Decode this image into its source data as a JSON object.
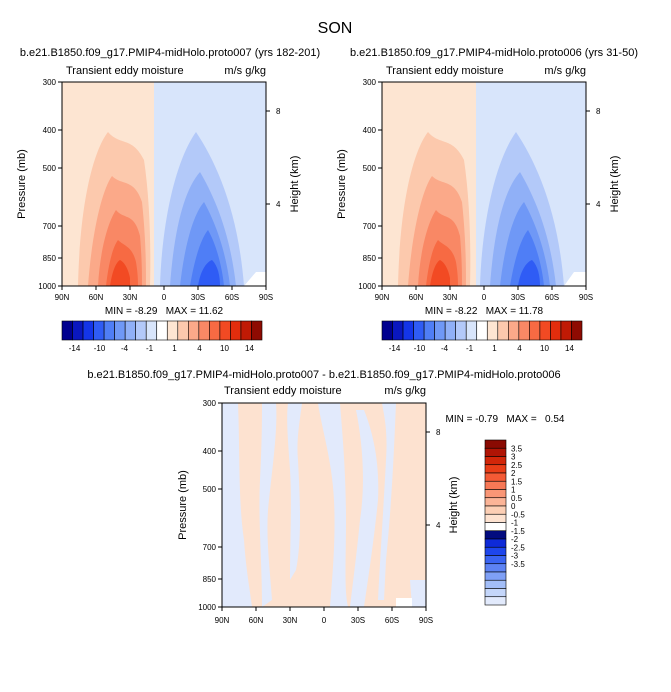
{
  "page_title": "SON",
  "colors": {
    "neg": [
      "#00008f",
      "#0a17c0",
      "#1435e8",
      "#2f5cf5",
      "#4f7ef6",
      "#6f98f6",
      "#90b0f7",
      "#b3c9f9",
      "#d8e5fb"
    ],
    "zero": "#ffffff",
    "pos": [
      "#fde5d2",
      "#fcc9ad",
      "#fba989",
      "#f98865",
      "#f76a43",
      "#f24a23",
      "#e22d0d",
      "#c01a05",
      "#8e0b02"
    ],
    "bottom_neg": [
      "#030b7f",
      "#0e2ad8",
      "#1e46ec",
      "#3a64f2",
      "#5d83f4",
      "#7fa0f6",
      "#a3bef8",
      "#c4d6fa",
      "#e2eafc"
    ],
    "bottom_pos": [
      "#fde2d0",
      "#fccfb5",
      "#fbb497",
      "#f99676",
      "#f77856",
      "#f45a35",
      "#e93d17",
      "#d22609",
      "#b01405",
      "#8a0a02"
    ]
  },
  "chart_data": [
    {
      "type": "heatmap",
      "title": "b.e21.B1850.f09_g17.PMIP4-midHolo.proto007 (yrs 182-201)",
      "left_string": "Transient eddy moisture",
      "right_string": "m/s g/kg",
      "xlabel": "",
      "ylabel": "Pressure (mb)",
      "y2label": "Height (km)",
      "x_ticks": [
        "90N",
        "60N",
        "30N",
        "0",
        "30S",
        "60S",
        "90S"
      ],
      "x_values": [
        90,
        60,
        30,
        0,
        -30,
        -60,
        -90
      ],
      "y_ticks": [
        "300",
        "400",
        "500",
        "700",
        "850",
        "1000"
      ],
      "y_values": [
        300,
        400,
        500,
        700,
        850,
        1000
      ],
      "y2_ticks": [
        "8",
        "4"
      ],
      "stats_text": "MIN = -8.29   MAX = 11.62",
      "min": -8.29,
      "max": 11.62,
      "label_bar": {
        "labels": [
          "-14",
          "-10",
          "-4",
          "-1",
          "1",
          "4",
          "10",
          "14"
        ],
        "levels": [
          -14,
          -12,
          -10,
          -7,
          -4,
          -2,
          -1,
          -0.5,
          0.5,
          1,
          2,
          4,
          7,
          10,
          12,
          14
        ]
      }
    },
    {
      "type": "heatmap",
      "title": "b.e21.B1850.f09_g17.PMIP4-midHolo.proto006 (yrs 31-50)",
      "left_string": "Transient eddy moisture",
      "right_string": "m/s g/kg",
      "ylabel": "Pressure (mb)",
      "y2label": "Height (km)",
      "x_ticks": [
        "90N",
        "60N",
        "30N",
        "0",
        "30S",
        "60S",
        "90S"
      ],
      "y_ticks": [
        "300",
        "400",
        "500",
        "700",
        "850",
        "1000"
      ],
      "y2_ticks": [
        "8",
        "4"
      ],
      "stats_text": "MIN = -8.22   MAX = 11.78",
      "min": -8.22,
      "max": 11.78,
      "label_bar": {
        "labels": [
          "-14",
          "-10",
          "-4",
          "-1",
          "1",
          "4",
          "10",
          "14"
        ]
      }
    },
    {
      "type": "heatmap",
      "title": "b.e21.B1850.f09_g17.PMIP4-midHolo.proto007 - b.e21.B1850.f09_g17.PMIP4-midHolo.proto006",
      "left_string": "Transient eddy moisture",
      "right_string": "m/s g/kg",
      "ylabel": "Pressure (mb)",
      "y2label": "Height (km)",
      "x_ticks": [
        "90N",
        "60N",
        "30N",
        "0",
        "30S",
        "60S",
        "90S"
      ],
      "y_ticks": [
        "300",
        "400",
        "500",
        "700",
        "850",
        "1000"
      ],
      "y2_ticks": [
        "8",
        "4"
      ],
      "stats_text": "MIN = -0.79   MAX =   0.54",
      "min": -0.79,
      "max": 0.54,
      "label_bar": {
        "labels": [
          "3.5",
          "3",
          "2.5",
          "2",
          "1.5",
          "1",
          "0.5",
          "0",
          "-0.5",
          "-1",
          "-1.5",
          "-2",
          "-2.5",
          "-3",
          "-3.5"
        ]
      }
    }
  ]
}
